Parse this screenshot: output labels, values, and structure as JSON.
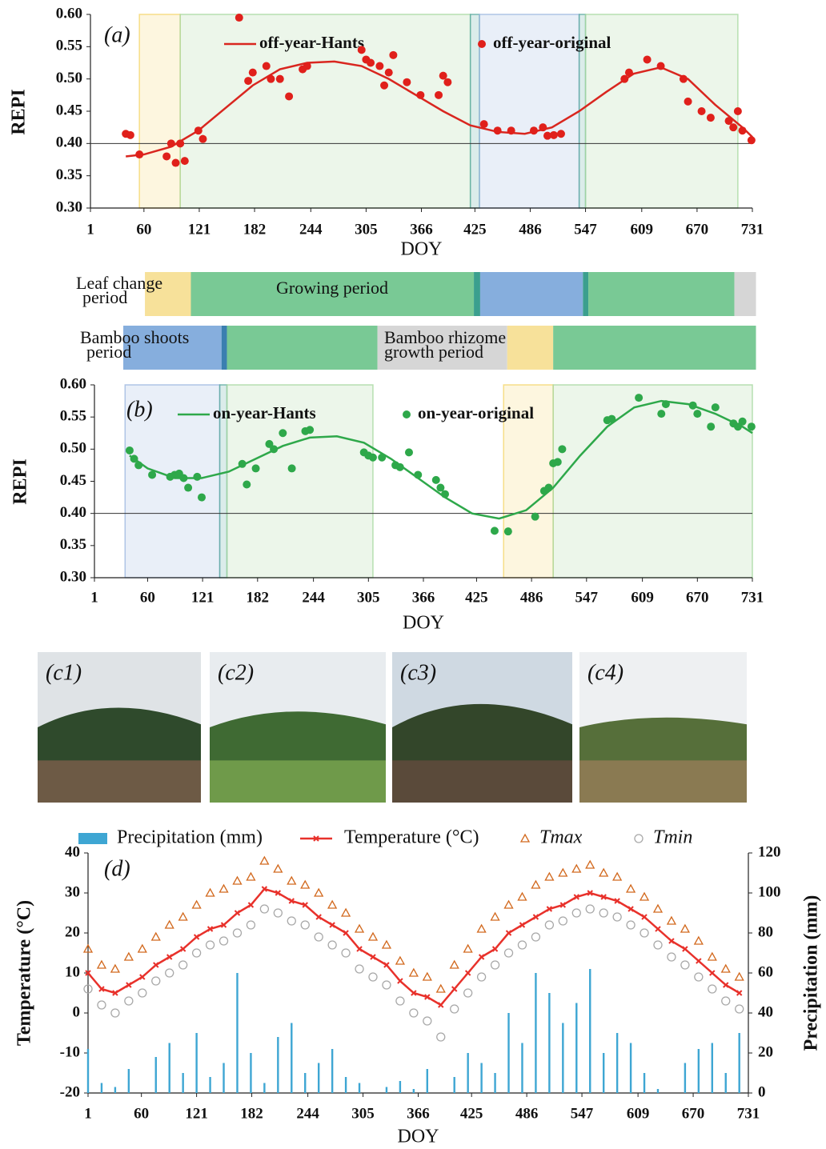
{
  "chart_data": [
    {
      "type": "scatter",
      "panel_label": "(a)",
      "xlabel": "DOY",
      "ylabel": "REPI",
      "xlim": [
        1,
        731
      ],
      "xticks": [
        1,
        60,
        121,
        182,
        244,
        305,
        366,
        425,
        486,
        547,
        609,
        670,
        731
      ],
      "ylim": [
        0.3,
        0.6
      ],
      "yticks": [
        {
          "value": 0.3,
          "label": "0.30"
        },
        0.35,
        {
          "value": 0.4,
          "label": "0.40"
        },
        0.45,
        {
          "value": 0.5,
          "label": "0.50"
        },
        0.55,
        {
          "value": 0.6,
          "label": "0.60"
        }
      ],
      "reference_line": 0.4,
      "bands": [
        {
          "start": 55,
          "end": 100,
          "color": "#f5d76e"
        },
        {
          "start": 100,
          "end": 420,
          "color": "#a8d8a0"
        },
        {
          "start": 420,
          "end": 430,
          "color": "#5aa9a0"
        },
        {
          "start": 430,
          "end": 540,
          "color": "#9db8e0"
        },
        {
          "start": 540,
          "end": 547,
          "color": "#5aa9a0"
        },
        {
          "start": 547,
          "end": 715,
          "color": "#a8d8a0"
        }
      ],
      "series": [
        {
          "name": "off-year-Hants",
          "kind": "line",
          "color": "#d9261f",
          "x": [
            40,
            60,
            90,
            120,
            150,
            180,
            210,
            240,
            270,
            300,
            330,
            360,
            390,
            420,
            450,
            480,
            510,
            540,
            570,
            600,
            630,
            660,
            690,
            720,
            731
          ],
          "values": [
            0.38,
            0.383,
            0.395,
            0.42,
            0.455,
            0.49,
            0.515,
            0.525,
            0.527,
            0.52,
            0.5,
            0.475,
            0.45,
            0.428,
            0.418,
            0.415,
            0.425,
            0.45,
            0.48,
            0.508,
            0.518,
            0.5,
            0.46,
            0.425,
            0.41
          ]
        },
        {
          "name": "off-year-original",
          "kind": "scatter",
          "color": "#e0201b",
          "x": [
            40,
            45,
            55,
            85,
            90,
            95,
            100,
            105,
            120,
            125,
            165,
            175,
            180,
            195,
            200,
            210,
            220,
            235,
            240,
            300,
            305,
            310,
            320,
            325,
            330,
            335,
            350,
            365,
            385,
            390,
            395,
            435,
            450,
            465,
            490,
            500,
            505,
            512,
            520,
            590,
            595,
            615,
            630,
            655,
            660,
            675,
            685,
            705,
            710,
            715,
            720,
            730
          ],
          "values": [
            0.415,
            0.413,
            0.383,
            0.38,
            0.4,
            0.37,
            0.4,
            0.373,
            0.42,
            0.407,
            0.595,
            0.497,
            0.51,
            0.52,
            0.5,
            0.5,
            0.473,
            0.515,
            0.52,
            0.545,
            0.53,
            0.525,
            0.52,
            0.49,
            0.51,
            0.537,
            0.495,
            0.475,
            0.475,
            0.505,
            0.495,
            0.43,
            0.42,
            0.42,
            0.42,
            0.425,
            0.412,
            0.413,
            0.415,
            0.5,
            0.51,
            0.53,
            0.52,
            0.5,
            0.465,
            0.45,
            0.44,
            0.435,
            0.425,
            0.45,
            0.42,
            0.405
          ]
        }
      ]
    },
    {
      "type": "scatter",
      "panel_label": "(b)",
      "xlabel": "DOY",
      "ylabel": "REPI",
      "xlim": [
        1,
        731
      ],
      "xticks": [
        1,
        60,
        121,
        182,
        244,
        305,
        366,
        425,
        486,
        547,
        609,
        670,
        731
      ],
      "ylim": [
        0.3,
        0.6
      ],
      "yticks": [
        {
          "value": 0.3,
          "label": "0.30"
        },
        0.35,
        {
          "value": 0.4,
          "label": "0.40"
        },
        0.45,
        {
          "value": 0.5,
          "label": "0.50"
        },
        0.55,
        {
          "value": 0.6,
          "label": "0.60"
        }
      ],
      "reference_line": 0.4,
      "bands": [
        {
          "start": 35,
          "end": 140,
          "color": "#9db8e0"
        },
        {
          "start": 140,
          "end": 148,
          "color": "#5aa9a0"
        },
        {
          "start": 148,
          "end": 310,
          "color": "#a8d8a0"
        },
        {
          "start": 455,
          "end": 510,
          "color": "#f5d76e"
        },
        {
          "start": 510,
          "end": 731,
          "color": "#a8d8a0"
        }
      ],
      "series": [
        {
          "name": "on-year-Hants",
          "kind": "line",
          "color": "#2ea84a",
          "x": [
            40,
            60,
            90,
            120,
            150,
            180,
            210,
            240,
            270,
            300,
            330,
            360,
            390,
            420,
            450,
            480,
            510,
            540,
            570,
            600,
            630,
            660,
            690,
            720,
            731
          ],
          "values": [
            0.49,
            0.47,
            0.455,
            0.455,
            0.465,
            0.485,
            0.505,
            0.518,
            0.52,
            0.51,
            0.485,
            0.455,
            0.425,
            0.4,
            0.392,
            0.405,
            0.44,
            0.49,
            0.535,
            0.565,
            0.575,
            0.57,
            0.555,
            0.535,
            0.525
          ]
        },
        {
          "name": "on-year-original",
          "kind": "scatter",
          "color": "#2ea84a",
          "x": [
            40,
            45,
            50,
            65,
            85,
            90,
            95,
            100,
            105,
            115,
            120,
            165,
            170,
            180,
            195,
            200,
            210,
            220,
            235,
            240,
            300,
            305,
            310,
            320,
            335,
            340,
            350,
            360,
            380,
            385,
            390,
            445,
            460,
            490,
            500,
            505,
            510,
            515,
            520,
            570,
            575,
            605,
            630,
            635,
            665,
            670,
            685,
            690,
            710,
            715,
            720,
            730
          ],
          "values": [
            0.498,
            0.485,
            0.475,
            0.46,
            0.457,
            0.46,
            0.462,
            0.455,
            0.44,
            0.457,
            0.425,
            0.477,
            0.445,
            0.47,
            0.508,
            0.5,
            0.525,
            0.47,
            0.528,
            0.53,
            0.495,
            0.49,
            0.487,
            0.487,
            0.475,
            0.472,
            0.495,
            0.46,
            0.452,
            0.44,
            0.43,
            0.373,
            0.372,
            0.395,
            0.435,
            0.44,
            0.478,
            0.48,
            0.5,
            0.545,
            0.547,
            0.58,
            0.555,
            0.57,
            0.568,
            0.555,
            0.535,
            0.565,
            0.54,
            0.535,
            0.543,
            0.535
          ]
        }
      ]
    },
    {
      "type": "line",
      "panel_label": "(d)",
      "xlabel": "DOY",
      "ylabel": "Temperature (°C)",
      "y2label": "Precipitation (mm)",
      "xlim": [
        1,
        731
      ],
      "xticks": [
        1,
        60,
        121,
        182,
        244,
        305,
        366,
        425,
        486,
        547,
        609,
        670,
        731
      ],
      "ylim": [
        -20,
        40
      ],
      "yticks": [
        -20,
        -10,
        0,
        10,
        20,
        30,
        40
      ],
      "y2lim": [
        0,
        120
      ],
      "y2ticks": [
        0,
        20,
        40,
        60,
        80,
        100,
        120
      ],
      "x": [
        1,
        16,
        31,
        46,
        61,
        76,
        91,
        106,
        121,
        136,
        151,
        166,
        181,
        196,
        211,
        226,
        241,
        256,
        271,
        286,
        301,
        316,
        331,
        346,
        361,
        376,
        391,
        406,
        421,
        436,
        451,
        466,
        481,
        496,
        511,
        526,
        541,
        556,
        571,
        586,
        601,
        616,
        631,
        646,
        661,
        676,
        691,
        706,
        721
      ],
      "series": [
        {
          "name": "Precipitation (mm)",
          "kind": "bar",
          "axis": "y2",
          "color": "#3ea6d3",
          "values": [
            22,
            5,
            3,
            12,
            0,
            18,
            25,
            10,
            30,
            8,
            15,
            60,
            20,
            5,
            28,
            35,
            10,
            15,
            22,
            8,
            5,
            0,
            3,
            6,
            2,
            12,
            0,
            8,
            20,
            15,
            10,
            40,
            25,
            60,
            50,
            35,
            45,
            62,
            20,
            30,
            25,
            10,
            2,
            0,
            15,
            22,
            25,
            10,
            30
          ]
        },
        {
          "name": "Temperature (°C)",
          "kind": "line",
          "marker": "x",
          "color": "#e8312b",
          "values": [
            10,
            6,
            5,
            7,
            9,
            12,
            14,
            16,
            19,
            21,
            22,
            25,
            27,
            31,
            30,
            28,
            27,
            24,
            22,
            20,
            16,
            14,
            12,
            8,
            5,
            4,
            2,
            6,
            10,
            14,
            16,
            20,
            22,
            24,
            26,
            27,
            29,
            30,
            29,
            28,
            26,
            24,
            21,
            18,
            16,
            13,
            10,
            7,
            5
          ]
        },
        {
          "name": "Tmax",
          "kind": "scatter",
          "marker": "triangle",
          "color": "#d2691e",
          "values": [
            16,
            12,
            11,
            14,
            16,
            19,
            22,
            24,
            27,
            30,
            31,
            33,
            34,
            38,
            36,
            33,
            32,
            30,
            27,
            25,
            21,
            19,
            17,
            13,
            10,
            9,
            6,
            12,
            16,
            21,
            24,
            27,
            29,
            32,
            34,
            35,
            36,
            37,
            35,
            34,
            31,
            29,
            26,
            23,
            21,
            18,
            14,
            11,
            9
          ]
        },
        {
          "name": "Tmin",
          "kind": "scatter",
          "marker": "circle-open",
          "color": "#a8a8a8",
          "values": [
            6,
            2,
            0,
            3,
            5,
            8,
            10,
            12,
            15,
            17,
            18,
            20,
            22,
            26,
            25,
            23,
            22,
            19,
            17,
            15,
            11,
            9,
            7,
            3,
            0,
            -2,
            -6,
            1,
            5,
            9,
            12,
            15,
            17,
            19,
            22,
            23,
            25,
            26,
            25,
            24,
            22,
            20,
            17,
            14,
            12,
            9,
            6,
            3,
            1
          ]
        }
      ]
    }
  ],
  "phenology": [
    {
      "segments": [
        {
          "start": 57,
          "end": 108,
          "color": "#f7e19a"
        },
        {
          "start": 108,
          "end": 422,
          "color": "#79c995"
        },
        {
          "start": 422,
          "end": 429,
          "color": "#3b9f8e"
        },
        {
          "start": 429,
          "end": 543,
          "color": "#86aedd"
        },
        {
          "start": 543,
          "end": 549,
          "color": "#3b9f8e"
        },
        {
          "start": 549,
          "end": 711,
          "color": "#79c995"
        },
        {
          "start": 711,
          "end": 735,
          "color": "#d6d6d6"
        }
      ],
      "labels": [
        {
          "lines": [
            "Leaf change",
            "period"
          ]
        },
        {
          "lines": [
            "Growing period"
          ]
        }
      ]
    },
    {
      "segments": [
        {
          "start": 33,
          "end": 142,
          "color": "#86aedd"
        },
        {
          "start": 142,
          "end": 148,
          "color": "#3b7fb0"
        },
        {
          "start": 148,
          "end": 315,
          "color": "#79c995"
        },
        {
          "start": 315,
          "end": 459,
          "color": "#d6d6d6"
        },
        {
          "start": 459,
          "end": 510,
          "color": "#f7e19a"
        },
        {
          "start": 510,
          "end": 735,
          "color": "#79c995"
        }
      ],
      "labels": [
        {
          "lines": [
            "Bamboo shoots",
            "period"
          ]
        },
        {
          "lines": [
            "Bamboo rhizome",
            "growth period"
          ]
        }
      ]
    }
  ],
  "photos": [
    {
      "label": "(c1)"
    },
    {
      "label": "(c2)"
    },
    {
      "label": "(c3)"
    },
    {
      "label": "(c4)"
    }
  ]
}
